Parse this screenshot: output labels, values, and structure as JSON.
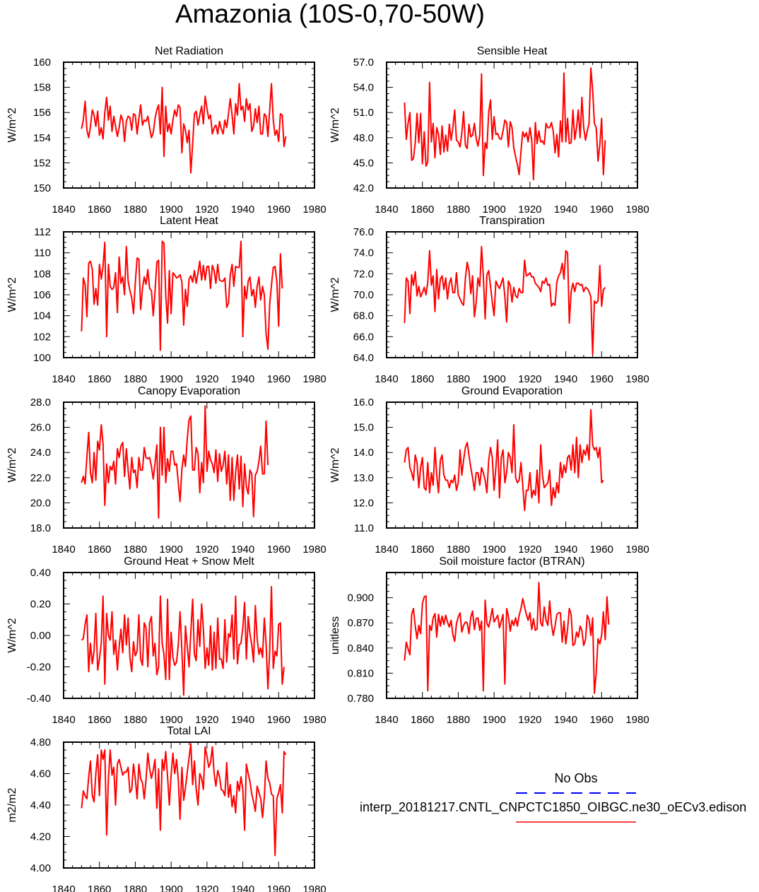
{
  "title": "Amazonia (10S-0,70-50W)",
  "legend": {
    "obs_label": "No Obs",
    "obs_color": "#0000ff",
    "model_label": "interp_20181217.CNTL_CNPCTC1850_OIBGC.ne30_oECv3.edison",
    "model_color": "#ff0000"
  },
  "chart_data": [
    {
      "type": "line",
      "title": "Net Radiation",
      "ylabel": "W/m^2",
      "xlim": [
        1840,
        1980
      ],
      "xticks": [
        "1840",
        "1860",
        "1880",
        "1900",
        "1920",
        "1940",
        "1960",
        "1980"
      ],
      "ylim": [
        150,
        160
      ],
      "yticks": [
        "150",
        "152",
        "154",
        "156",
        "158",
        "160"
      ],
      "x_start": 1850,
      "values": [
        154.7,
        155.4,
        156.9,
        154.6,
        154.0,
        154.9,
        156.2,
        155.8,
        154.9,
        156.1,
        154.2,
        154.8,
        153.9,
        156.0,
        157.2,
        155.4,
        156.5,
        154.5,
        155.7,
        154.9,
        154.1,
        154.8,
        155.8,
        155.4,
        153.7,
        155.3,
        155.7,
        155.6,
        154.6,
        155.9,
        155.8,
        154.3,
        155.5,
        156.6,
        155.0,
        155.4,
        155.3,
        155.7,
        154.8,
        154.0,
        154.4,
        155.5,
        156.2,
        156.6,
        154.3,
        158.0,
        152.5,
        156.5,
        154.5,
        155.1,
        154.3,
        155.4,
        156.2,
        155.7,
        156.6,
        156.4,
        152.8,
        155.1,
        154.6,
        153.6,
        154.6,
        151.2,
        153.5,
        155.9,
        156.1,
        155.0,
        155.8,
        156.5,
        155.1,
        157.3,
        156.3,
        155.5,
        155.8,
        154.3,
        154.8,
        155.0,
        154.3,
        155.3,
        154.7,
        154.3,
        155.4,
        154.8,
        155.9,
        157.1,
        155.8,
        154.3,
        156.7,
        155.8,
        158.3,
        156.2,
        156.5,
        155.3,
        157.1,
        156.2,
        156.7,
        154.5,
        154.9,
        156.3,
        155.2,
        156.5,
        154.3,
        154.3,
        155.9,
        155.7,
        154.1,
        156.2,
        158.3,
        155.4,
        154.2,
        154.6,
        153.7,
        155.9,
        155.8,
        153.3,
        154.1
      ]
    },
    {
      "type": "line",
      "title": "Sensible Heat",
      "ylabel": "W/m^2",
      "xlim": [
        1840,
        1980
      ],
      "xticks": [
        "1840",
        "1860",
        "1880",
        "1900",
        "1920",
        "1940",
        "1960",
        "1980"
      ],
      "ylim": [
        42,
        57
      ],
      "yticks": [
        "42.0",
        "45.0",
        "48.0",
        "51.0",
        "54.0",
        "57.0"
      ],
      "x_start": 1850,
      "values": [
        52.2,
        47.8,
        49.7,
        51.0,
        45.3,
        45.5,
        47.4,
        50.9,
        47.4,
        50.9,
        44.9,
        48.7,
        44.6,
        45.1,
        54.6,
        47.5,
        49.7,
        45.6,
        49.2,
        48.4,
        46.0,
        49.4,
        46.3,
        48.3,
        46.4,
        49.6,
        47.7,
        49.2,
        51.3,
        47.7,
        47.5,
        46.9,
        48.6,
        51.1,
        47.1,
        46.7,
        49.6,
        48.1,
        48.3,
        49.7,
        47.9,
        47.0,
        48.3,
        55.6,
        43.5,
        47.4,
        46.7,
        51.0,
        52.5,
        47.8,
        50.5,
        48.4,
        48.5,
        47.9,
        47.8,
        48.8,
        50.1,
        49.8,
        46.9,
        49.9,
        49.2,
        46.8,
        45.7,
        44.8,
        43.6,
        46.4,
        48.7,
        48.1,
        48.6,
        47.5,
        49.2,
        47.7,
        43.0,
        49.8,
        47.3,
        48.8,
        47.5,
        47.6,
        47.2,
        49.7,
        49.2,
        49.2,
        49.8,
        48.8,
        46.2,
        48.4,
        45.7,
        50.0,
        47.5,
        55.7,
        47.5,
        50.3,
        47.3,
        47.4,
        51.3,
        47.8,
        49.2,
        51.3,
        48.0,
        52.8,
        49.2,
        47.7,
        48.8,
        49.7,
        56.3,
        53.7,
        49.7,
        49.2,
        45.2,
        47.2,
        50.3,
        43.6,
        47.7
      ]
    },
    {
      "type": "line",
      "title": "Latent Heat",
      "ylabel": "W/m^2",
      "xlim": [
        1840,
        1980
      ],
      "xticks": [
        "1840",
        "1860",
        "1880",
        "1900",
        "1920",
        "1940",
        "1960",
        "1980"
      ],
      "ylim": [
        100,
        112
      ],
      "yticks": [
        "100",
        "102",
        "104",
        "106",
        "108",
        "110",
        "112"
      ],
      "x_start": 1850,
      "values": [
        102.5,
        107.6,
        107.0,
        103.9,
        109.0,
        109.2,
        108.4,
        105.1,
        106.6,
        105.0,
        108.9,
        107.5,
        108.7,
        111.0,
        102.0,
        108.9,
        106.8,
        106.5,
        106.7,
        108.1,
        104.3,
        109.6,
        107.1,
        107.7,
        106.0,
        110.6,
        107.3,
        106.4,
        105.7,
        104.2,
        107.1,
        109.5,
        109.4,
        104.6,
        106.6,
        107.7,
        107.0,
        108.4,
        106.6,
        106.4,
        104.0,
        106.2,
        109.1,
        109.3,
        100.7,
        111.1,
        110.9,
        106.0,
        103.3,
        108.3,
        104.2,
        108.1,
        107.9,
        107.6,
        107.7,
        107.9,
        107.2,
        103.1,
        106.5,
        104.9,
        107.5,
        107.8,
        107.2,
        108.3,
        107.1,
        108.1,
        109.2,
        107.4,
        108.8,
        107.4,
        108.7,
        108.7,
        106.6,
        108.8,
        108.3,
        107.1,
        108.9,
        107.4,
        107.3,
        107.3,
        107.6,
        104.8,
        105.2,
        107.9,
        108.9,
        106.8,
        108.7,
        108.6,
        108.6,
        111.1,
        102.0,
        106.8,
        105.6,
        107.3,
        107.7,
        105.9,
        106.5,
        104.8,
        106.8,
        107.7,
        105.5,
        106.8,
        106.0,
        102.3,
        100.8,
        105.1,
        106.9,
        108.6,
        108.7,
        107.2,
        103.0,
        109.9,
        106.6
      ]
    },
    {
      "type": "line",
      "title": "Transpiration",
      "ylabel": "W/m^2",
      "xlim": [
        1840,
        1980
      ],
      "xticks": [
        "1840",
        "1860",
        "1880",
        "1900",
        "1920",
        "1940",
        "1960",
        "1980"
      ],
      "ylim": [
        64,
        76
      ],
      "yticks": [
        "64.0",
        "66.0",
        "68.0",
        "70.0",
        "72.0",
        "74.0",
        "76.0"
      ],
      "x_start": 1850,
      "values": [
        67.3,
        71.6,
        71.3,
        68.2,
        71.9,
        70.9,
        72.2,
        69.9,
        70.8,
        69.8,
        70.2,
        70.7,
        70.0,
        71.2,
        74.2,
        70.9,
        71.8,
        68.4,
        72.4,
        69.6,
        71.5,
        71.8,
        70.5,
        71.6,
        69.6,
        71.1,
        71.6,
        70.2,
        70.2,
        72.1,
        70.0,
        69.6,
        69.2,
        69.0,
        71.6,
        73.1,
        72.3,
        70.1,
        71.8,
        67.9,
        69.3,
        71.6,
        70.8,
        74.6,
        71.8,
        67.7,
        71.9,
        72.3,
        70.8,
        69.3,
        68.0,
        71.3,
        70.9,
        70.6,
        71.1,
        71.6,
        69.8,
        67.4,
        71.3,
        70.9,
        69.3,
        70.7,
        69.9,
        69.7,
        70.6,
        70.2,
        70.2,
        73.3,
        71.8,
        71.9,
        72.1,
        71.7,
        71.7,
        71.1,
        70.9,
        70.7,
        70.3,
        71.3,
        71.1,
        71.6,
        70.9,
        71.0,
        68.9,
        69.2,
        69.0,
        71.2,
        71.8,
        72.1,
        73.0,
        71.5,
        74.2,
        74.0,
        67.3,
        70.3,
        71.1,
        70.3,
        71.1,
        71.1,
        70.9,
        71.0,
        70.3,
        70.7,
        70.6,
        70.3,
        69.8,
        64.3,
        69.4,
        69.2,
        69.4,
        72.8,
        68.9,
        70.5,
        70.7
      ]
    },
    {
      "type": "line",
      "title": "Canopy Evaporation",
      "ylabel": "W/m^2",
      "xlim": [
        1840,
        1980
      ],
      "xticks": [
        "1840",
        "1860",
        "1880",
        "1900",
        "1920",
        "1940",
        "1960",
        "1980"
      ],
      "ylim": [
        18,
        28
      ],
      "yticks": [
        "18.0",
        "20.0",
        "22.0",
        "24.0",
        "26.0",
        "28.0"
      ],
      "x_start": 1850,
      "values": [
        21.6,
        22.1,
        21.5,
        23.7,
        25.6,
        22.4,
        21.6,
        24.0,
        21.8,
        24.9,
        24.2,
        26.2,
        24.7,
        19.8,
        23.1,
        21.6,
        22.9,
        22.6,
        23.3,
        21.5,
        24.3,
        23.6,
        24.5,
        24.8,
        22.1,
        24.3,
        22.6,
        21.1,
        23.6,
        22.4,
        22.6,
        21.2,
        23.6,
        22.6,
        22.6,
        24.4,
        23.6,
        23.5,
        23.6,
        22.9,
        21.9,
        23.1,
        24.6,
        18.8,
        26.0,
        22.2,
        26.0,
        21.6,
        23.5,
        22.5,
        24.1,
        24.1,
        23.0,
        23.1,
        21.6,
        20.1,
        22.7,
        23.8,
        22.9,
        25.1,
        26.6,
        26.9,
        22.6,
        22.6,
        24.4,
        23.9,
        20.8,
        23.2,
        21.6,
        27.7,
        22.5,
        24.1,
        23.4,
        23.1,
        22.4,
        24.2,
        21.7,
        23.9,
        22.5,
        23.0,
        24.1,
        21.5,
        23.8,
        20.2,
        23.6,
        20.2,
        22.4,
        23.8,
        21.1,
        23.7,
        19.7,
        23.1,
        21.3,
        20.7,
        22.6,
        22.3,
        18.9,
        22.2,
        22.5,
        23.3,
        24.5,
        22.3,
        22.3,
        26.5,
        23.0
      ]
    },
    {
      "type": "line",
      "title": "Ground Evaporation",
      "ylabel": "W/m^2",
      "xlim": [
        1840,
        1980
      ],
      "xticks": [
        "1840",
        "1860",
        "1880",
        "1900",
        "1920",
        "1940",
        "1960",
        "1980"
      ],
      "ylim": [
        11,
        16
      ],
      "yticks": [
        "11.0",
        "12.0",
        "13.0",
        "14.0",
        "15.0",
        "16.0"
      ],
      "x_start": 1850,
      "values": [
        13.6,
        14.1,
        14.2,
        13.4,
        13.2,
        12.9,
        13.9,
        13.6,
        12.6,
        13.4,
        13.8,
        12.6,
        12.5,
        13.6,
        12.4,
        13.2,
        12.7,
        14.2,
        13.1,
        12.4,
        13.7,
        13.9,
        13.1,
        12.9,
        12.9,
        12.6,
        12.9,
        12.8,
        13.1,
        12.5,
        12.8,
        14.1,
        13.1,
        13.7,
        14.2,
        14.4,
        13.9,
        13.4,
        13.0,
        12.5,
        13.2,
        13.2,
        12.7,
        13.4,
        13.2,
        12.9,
        12.4,
        13.7,
        14.2,
        13.8,
        12.5,
        13.4,
        14.5,
        12.2,
        13.8,
        14.1,
        12.8,
        13.2,
        14.0,
        13.8,
        13.2,
        15.1,
        13.0,
        12.8,
        12.9,
        13.6,
        12.7,
        11.7,
        12.5,
        12.5,
        13.2,
        12.2,
        12.5,
        12.3,
        13.3,
        12.0,
        14.3,
        13.1,
        12.6,
        12.7,
        12.8,
        13.3,
        11.9,
        12.6,
        12.2,
        12.8,
        12.4,
        13.6,
        13.0,
        13.5,
        13.2,
        13.8,
        13.9,
        13.3,
        14.3,
        13.2,
        14.6,
        13.0,
        14.3,
        13.6,
        14.1,
        13.9,
        14.3,
        13.7,
        15.7,
        14.3,
        14.1,
        14.2,
        13.8,
        14.2,
        12.8,
        12.9
      ]
    },
    {
      "type": "line",
      "title": "Ground Heat + Snow Melt",
      "ylabel": "W/m^2",
      "xlim": [
        1840,
        1980
      ],
      "xticks": [
        "1840",
        "1860",
        "1880",
        "1900",
        "1920",
        "1940",
        "1960",
        "1980"
      ],
      "ylim": [
        -0.4,
        0.4
      ],
      "yticks": [
        "-0.40",
        "-0.20",
        "0.00",
        "0.20",
        "0.40"
      ],
      "x_start": 1850,
      "values": [
        -0.03,
        -0.02,
        0.07,
        0.13,
        -0.23,
        -0.05,
        -0.18,
        -0.1,
        0.14,
        -0.22,
        -0.15,
        -0.05,
        0.25,
        -0.31,
        0.14,
        0.0,
        -0.03,
        0.15,
        -0.12,
        -0.03,
        -0.22,
        -0.07,
        0.04,
        -0.11,
        0.13,
        -0.06,
        0.11,
        -0.14,
        -0.23,
        -0.04,
        -0.13,
        -0.1,
        0.13,
        -0.15,
        -0.19,
        0.08,
        0.05,
        -0.2,
        0.08,
        0.12,
        -0.13,
        -0.05,
        -0.25,
        -0.2,
        0.25,
        -0.05,
        -0.12,
        -0.28,
        0.23,
        -0.28,
        0.02,
        -0.14,
        -0.19,
        -0.17,
        -0.06,
        0.15,
        -0.1,
        -0.38,
        0.06,
        -0.07,
        -0.2,
        0.02,
        0.23,
        -0.12,
        -0.16,
        0.1,
        -0.07,
        0.2,
        0.04,
        -0.21,
        -0.08,
        -0.19,
        0.06,
        -0.22,
        0.02,
        -0.21,
        0.11,
        -0.15,
        -0.15,
        -0.21,
        0.1,
        -0.17,
        0.01,
        -0.01,
        0.13,
        -0.15,
        0.25,
        -0.18,
        -0.06,
        -0.05,
        0.05,
        0.21,
        -0.15,
        0.12,
        0.01,
        -0.06,
        -0.17,
        0.19,
        -0.02,
        -0.12,
        -0.08,
        -0.14,
        0.11,
        -0.05,
        -0.34,
        -0.1,
        0.31,
        -0.21,
        -0.1,
        -0.13,
        0.07,
        0.08,
        -0.31,
        -0.2
      ]
    },
    {
      "type": "line",
      "title": "Soil moisture factor (BTRAN)",
      "ylabel": "unitless",
      "xlim": [
        1840,
        1980
      ],
      "xticks": [
        "1840",
        "1860",
        "1880",
        "1900",
        "1920",
        "1940",
        "1960",
        "1980"
      ],
      "ylim": [
        0.78,
        0.93
      ],
      "yticks": [
        "0.780",
        "0.810",
        "0.840",
        "0.870",
        "0.900"
      ],
      "x_start": 1850,
      "values": [
        0.825,
        0.847,
        0.839,
        0.832,
        0.88,
        0.887,
        0.866,
        0.851,
        0.867,
        0.857,
        0.893,
        0.901,
        0.902,
        0.789,
        0.867,
        0.861,
        0.876,
        0.881,
        0.853,
        0.88,
        0.866,
        0.878,
        0.868,
        0.879,
        0.871,
        0.865,
        0.873,
        0.856,
        0.848,
        0.869,
        0.877,
        0.882,
        0.859,
        0.867,
        0.871,
        0.87,
        0.857,
        0.877,
        0.884,
        0.862,
        0.875,
        0.876,
        0.861,
        0.872,
        0.789,
        0.897,
        0.869,
        0.865,
        0.875,
        0.887,
        0.871,
        0.875,
        0.879,
        0.864,
        0.872,
        0.88,
        0.797,
        0.887,
        0.878,
        0.86,
        0.873,
        0.867,
        0.876,
        0.866,
        0.879,
        0.887,
        0.899,
        0.889,
        0.88,
        0.873,
        0.882,
        0.862,
        0.875,
        0.861,
        0.863,
        0.918,
        0.87,
        0.866,
        0.889,
        0.873,
        0.867,
        0.896,
        0.869,
        0.855,
        0.866,
        0.88,
        0.882,
        0.882,
        0.847,
        0.872,
        0.845,
        0.862,
        0.887,
        0.88,
        0.843,
        0.845,
        0.859,
        0.853,
        0.866,
        0.861,
        0.843,
        0.85,
        0.879,
        0.874,
        0.855,
        0.876,
        0.786,
        0.811,
        0.851,
        0.845,
        0.855,
        0.883,
        0.85,
        0.901,
        0.868
      ]
    },
    {
      "type": "line",
      "title": "Total LAI",
      "ylabel": "m2/m2",
      "xlim": [
        1840,
        1980
      ],
      "xticks": [
        "1840",
        "1860",
        "1880",
        "1900",
        "1920",
        "1940",
        "1960",
        "1980"
      ],
      "ylim": [
        4.0,
        4.8
      ],
      "yticks": [
        "4.00",
        "4.20",
        "4.40",
        "4.60",
        "4.80"
      ],
      "x_start": 1850,
      "values": [
        4.38,
        4.49,
        4.46,
        4.44,
        4.58,
        4.68,
        4.46,
        4.42,
        4.6,
        4.72,
        4.46,
        4.75,
        4.69,
        4.75,
        4.21,
        4.57,
        4.75,
        4.59,
        4.64,
        4.4,
        4.66,
        4.69,
        4.64,
        4.59,
        4.61,
        4.61,
        4.64,
        4.48,
        4.5,
        4.66,
        4.57,
        4.44,
        4.66,
        4.57,
        4.54,
        4.44,
        4.56,
        4.73,
        4.63,
        4.57,
        4.62,
        4.69,
        4.38,
        4.63,
        4.24,
        4.69,
        4.62,
        4.74,
        4.58,
        4.4,
        4.59,
        4.73,
        4.6,
        4.69,
        4.56,
        4.31,
        4.64,
        4.43,
        4.51,
        4.61,
        4.7,
        4.79,
        4.53,
        4.68,
        4.5,
        4.4,
        4.6,
        4.57,
        4.5,
        4.77,
        4.71,
        4.64,
        4.67,
        4.77,
        4.6,
        4.52,
        4.62,
        4.58,
        4.5,
        4.49,
        4.46,
        4.67,
        4.45,
        4.53,
        4.39,
        4.46,
        4.35,
        4.55,
        4.49,
        4.58,
        4.5,
        4.24,
        4.66,
        4.6,
        4.55,
        4.47,
        4.42,
        4.36,
        4.52,
        4.48,
        4.44,
        4.32,
        4.45,
        4.68,
        4.57,
        4.54,
        4.47,
        4.46,
        4.08,
        4.44,
        4.48,
        4.53,
        4.35,
        4.74,
        4.72
      ]
    }
  ]
}
